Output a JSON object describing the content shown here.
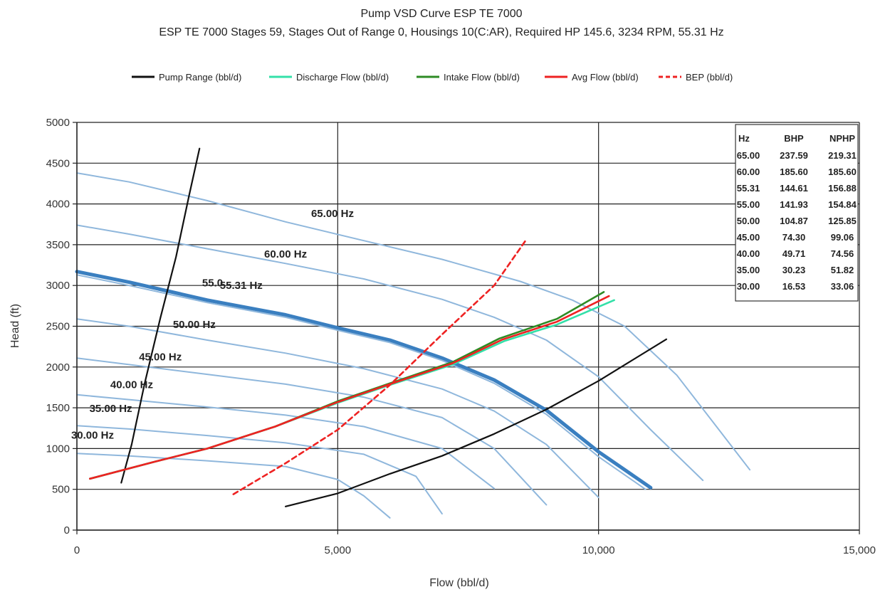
{
  "chart_data": {
    "type": "line",
    "title": "Pump VSD Curve ESP TE 7000",
    "subtitle": "ESP TE 7000 Stages 59, Stages Out of Range 0, Housings 10(C:AR), Required HP 145.6, 3234 RPM, 55.31 Hz",
    "xlabel": "Flow (bbl/d)",
    "ylabel": "Head (ft)",
    "xlim": [
      0,
      15000
    ],
    "ylim": [
      0,
      5000
    ],
    "xticks": [
      0,
      5000,
      10000,
      15000
    ],
    "xtick_labels": [
      "0",
      "5,000",
      "10,000",
      "15,000"
    ],
    "yticks": [
      0,
      500,
      1000,
      1500,
      2000,
      2500,
      3000,
      3500,
      4000,
      4500,
      5000
    ],
    "ytick_labels": [
      "0",
      "500",
      "1000",
      "1500",
      "2000",
      "2500",
      "3000",
      "3500",
      "4000",
      "4500",
      "5000"
    ],
    "grid": true,
    "legend_position": "top",
    "legend": [
      {
        "name": "Pump Range (bbl/d)",
        "color": "#111111",
        "dash": "solid"
      },
      {
        "name": "Discharge Flow (bbl/d)",
        "color": "#33e0a8",
        "dash": "solid"
      },
      {
        "name": "Intake Flow (bbl/d)",
        "color": "#2e8b24",
        "dash": "solid"
      },
      {
        "name": "Avg Flow (bbl/d)",
        "color": "#ee2222",
        "dash": "solid"
      },
      {
        "name": "BEP (bbl/d)",
        "color": "#ee2222",
        "dash": "dashed"
      }
    ],
    "speed_curves": [
      {
        "label": "65.00 Hz",
        "label_at": [
          4900,
          3840
        ],
        "highlight": false,
        "points": [
          [
            0,
            4380
          ],
          [
            1000,
            4270
          ],
          [
            2500,
            4040
          ],
          [
            4000,
            3780
          ],
          [
            5500,
            3550
          ],
          [
            7000,
            3320
          ],
          [
            8500,
            3050
          ],
          [
            9500,
            2820
          ],
          [
            10500,
            2500
          ],
          [
            11500,
            1900
          ],
          [
            12900,
            740
          ]
        ]
      },
      {
        "label": "60.00 Hz",
        "label_at": [
          4000,
          3340
        ],
        "highlight": false,
        "points": [
          [
            0,
            3740
          ],
          [
            1000,
            3630
          ],
          [
            2500,
            3450
          ],
          [
            4000,
            3270
          ],
          [
            5500,
            3080
          ],
          [
            7000,
            2830
          ],
          [
            8000,
            2610
          ],
          [
            9000,
            2330
          ],
          [
            10000,
            1880
          ],
          [
            11000,
            1230
          ],
          [
            12000,
            610
          ]
        ]
      },
      {
        "label": "55.31 Hz",
        "label_at": [
          3150,
          2960
        ],
        "highlight": true,
        "points": [
          [
            0,
            3170
          ],
          [
            1000,
            3040
          ],
          [
            2500,
            2820
          ],
          [
            4000,
            2640
          ],
          [
            5000,
            2480
          ],
          [
            6000,
            2330
          ],
          [
            7000,
            2110
          ],
          [
            8000,
            1840
          ],
          [
            9000,
            1470
          ],
          [
            10000,
            960
          ],
          [
            11000,
            520
          ]
        ]
      },
      {
        "label": "55.0",
        "label_at": [
          2600,
          2990
        ],
        "highlight": false,
        "points": [
          [
            0,
            3130
          ],
          [
            1000,
            3000
          ],
          [
            2500,
            2790
          ],
          [
            4000,
            2610
          ],
          [
            5000,
            2450
          ],
          [
            6000,
            2300
          ],
          [
            7000,
            2080
          ],
          [
            8000,
            1800
          ],
          [
            9000,
            1420
          ],
          [
            10000,
            900
          ],
          [
            10900,
            500
          ]
        ]
      },
      {
        "label": "50.00 Hz",
        "label_at": [
          2250,
          2480
        ],
        "highlight": false,
        "points": [
          [
            0,
            2590
          ],
          [
            1000,
            2500
          ],
          [
            2500,
            2330
          ],
          [
            4000,
            2170
          ],
          [
            5500,
            1980
          ],
          [
            7000,
            1730
          ],
          [
            8000,
            1460
          ],
          [
            9000,
            1050
          ],
          [
            10000,
            400
          ]
        ]
      },
      {
        "label": "45.00 Hz",
        "label_at": [
          1600,
          2080
        ],
        "highlight": false,
        "points": [
          [
            0,
            2110
          ],
          [
            1000,
            2030
          ],
          [
            2500,
            1910
          ],
          [
            4000,
            1790
          ],
          [
            5500,
            1630
          ],
          [
            7000,
            1380
          ],
          [
            8000,
            1000
          ],
          [
            9000,
            310
          ]
        ]
      },
      {
        "label": "40.00 Hz",
        "label_at": [
          1050,
          1740
        ],
        "highlight": false,
        "points": [
          [
            0,
            1660
          ],
          [
            1000,
            1600
          ],
          [
            2500,
            1510
          ],
          [
            4000,
            1410
          ],
          [
            5500,
            1270
          ],
          [
            7000,
            1000
          ],
          [
            8000,
            510
          ]
        ]
      },
      {
        "label": "35.00 Hz",
        "label_at": [
          650,
          1450
        ],
        "highlight": false,
        "points": [
          [
            0,
            1280
          ],
          [
            1000,
            1240
          ],
          [
            2500,
            1160
          ],
          [
            4000,
            1070
          ],
          [
            5500,
            930
          ],
          [
            6500,
            660
          ],
          [
            7000,
            200
          ]
        ]
      },
      {
        "label": "30.00 Hz",
        "label_at": [
          300,
          1120
        ],
        "highlight": false,
        "points": [
          [
            0,
            940
          ],
          [
            1000,
            910
          ],
          [
            2500,
            850
          ],
          [
            4000,
            780
          ],
          [
            5000,
            620
          ],
          [
            5500,
            420
          ],
          [
            6000,
            150
          ]
        ]
      }
    ],
    "series": [
      {
        "name": "Pump Range (bbl/d)",
        "color": "#111111",
        "dash": "solid",
        "points": [
          [
            850,
            580
          ],
          [
            1050,
            1050
          ],
          [
            1300,
            1800
          ],
          [
            1600,
            2600
          ],
          [
            1900,
            3350
          ],
          [
            2150,
            4100
          ],
          [
            2350,
            4680
          ]
        ]
      },
      {
        "name": "Pump Range (bbl/d)",
        "color": "#111111",
        "dash": "solid",
        "points": [
          [
            4000,
            290
          ],
          [
            5000,
            450
          ],
          [
            6000,
            690
          ],
          [
            7000,
            910
          ],
          [
            8000,
            1180
          ],
          [
            9000,
            1480
          ],
          [
            10000,
            1830
          ],
          [
            11300,
            2340
          ]
        ]
      },
      {
        "name": "Discharge Flow (bbl/d)",
        "color": "#33e0a8",
        "dash": "solid",
        "points": [
          [
            250,
            630
          ],
          [
            1500,
            840
          ],
          [
            2500,
            1000
          ],
          [
            3800,
            1270
          ],
          [
            5000,
            1560
          ],
          [
            6000,
            1780
          ],
          [
            7200,
            2030
          ],
          [
            8200,
            2320
          ],
          [
            9200,
            2520
          ],
          [
            10300,
            2820
          ]
        ]
      },
      {
        "name": "Intake Flow (bbl/d)",
        "color": "#2e8b24",
        "dash": "solid",
        "points": [
          [
            250,
            630
          ],
          [
            1500,
            840
          ],
          [
            2500,
            1000
          ],
          [
            3800,
            1270
          ],
          [
            5000,
            1580
          ],
          [
            6000,
            1800
          ],
          [
            7200,
            2060
          ],
          [
            8100,
            2350
          ],
          [
            9200,
            2590
          ],
          [
            10100,
            2920
          ]
        ]
      },
      {
        "name": "Avg Flow (bbl/d)",
        "color": "#ee2222",
        "dash": "solid",
        "points": [
          [
            250,
            630
          ],
          [
            1500,
            840
          ],
          [
            2500,
            1000
          ],
          [
            3800,
            1270
          ],
          [
            5000,
            1570
          ],
          [
            6000,
            1790
          ],
          [
            7200,
            2045
          ],
          [
            8150,
            2335
          ],
          [
            9200,
            2555
          ],
          [
            10200,
            2870
          ]
        ]
      },
      {
        "name": "BEP (bbl/d)",
        "color": "#ee2222",
        "dash": "dashed",
        "points": [
          [
            3000,
            440
          ],
          [
            4000,
            820
          ],
          [
            5000,
            1230
          ],
          [
            6000,
            1780
          ],
          [
            7000,
            2400
          ],
          [
            8000,
            3000
          ],
          [
            8600,
            3550
          ]
        ]
      }
    ],
    "table": {
      "headers": [
        "Hz",
        "BHP",
        "NPHP"
      ],
      "rows": [
        [
          "65.00",
          "237.59",
          "219.31"
        ],
        [
          "60.00",
          "185.60",
          "185.60"
        ],
        [
          "55.31",
          "144.61",
          "156.88"
        ],
        [
          "55.00",
          "141.93",
          "154.84"
        ],
        [
          "50.00",
          "104.87",
          "125.85"
        ],
        [
          "45.00",
          "74.30",
          "99.06"
        ],
        [
          "40.00",
          "49.71",
          "74.56"
        ],
        [
          "35.00",
          "30.23",
          "51.82"
        ],
        [
          "30.00",
          "16.53",
          "33.06"
        ]
      ]
    }
  }
}
